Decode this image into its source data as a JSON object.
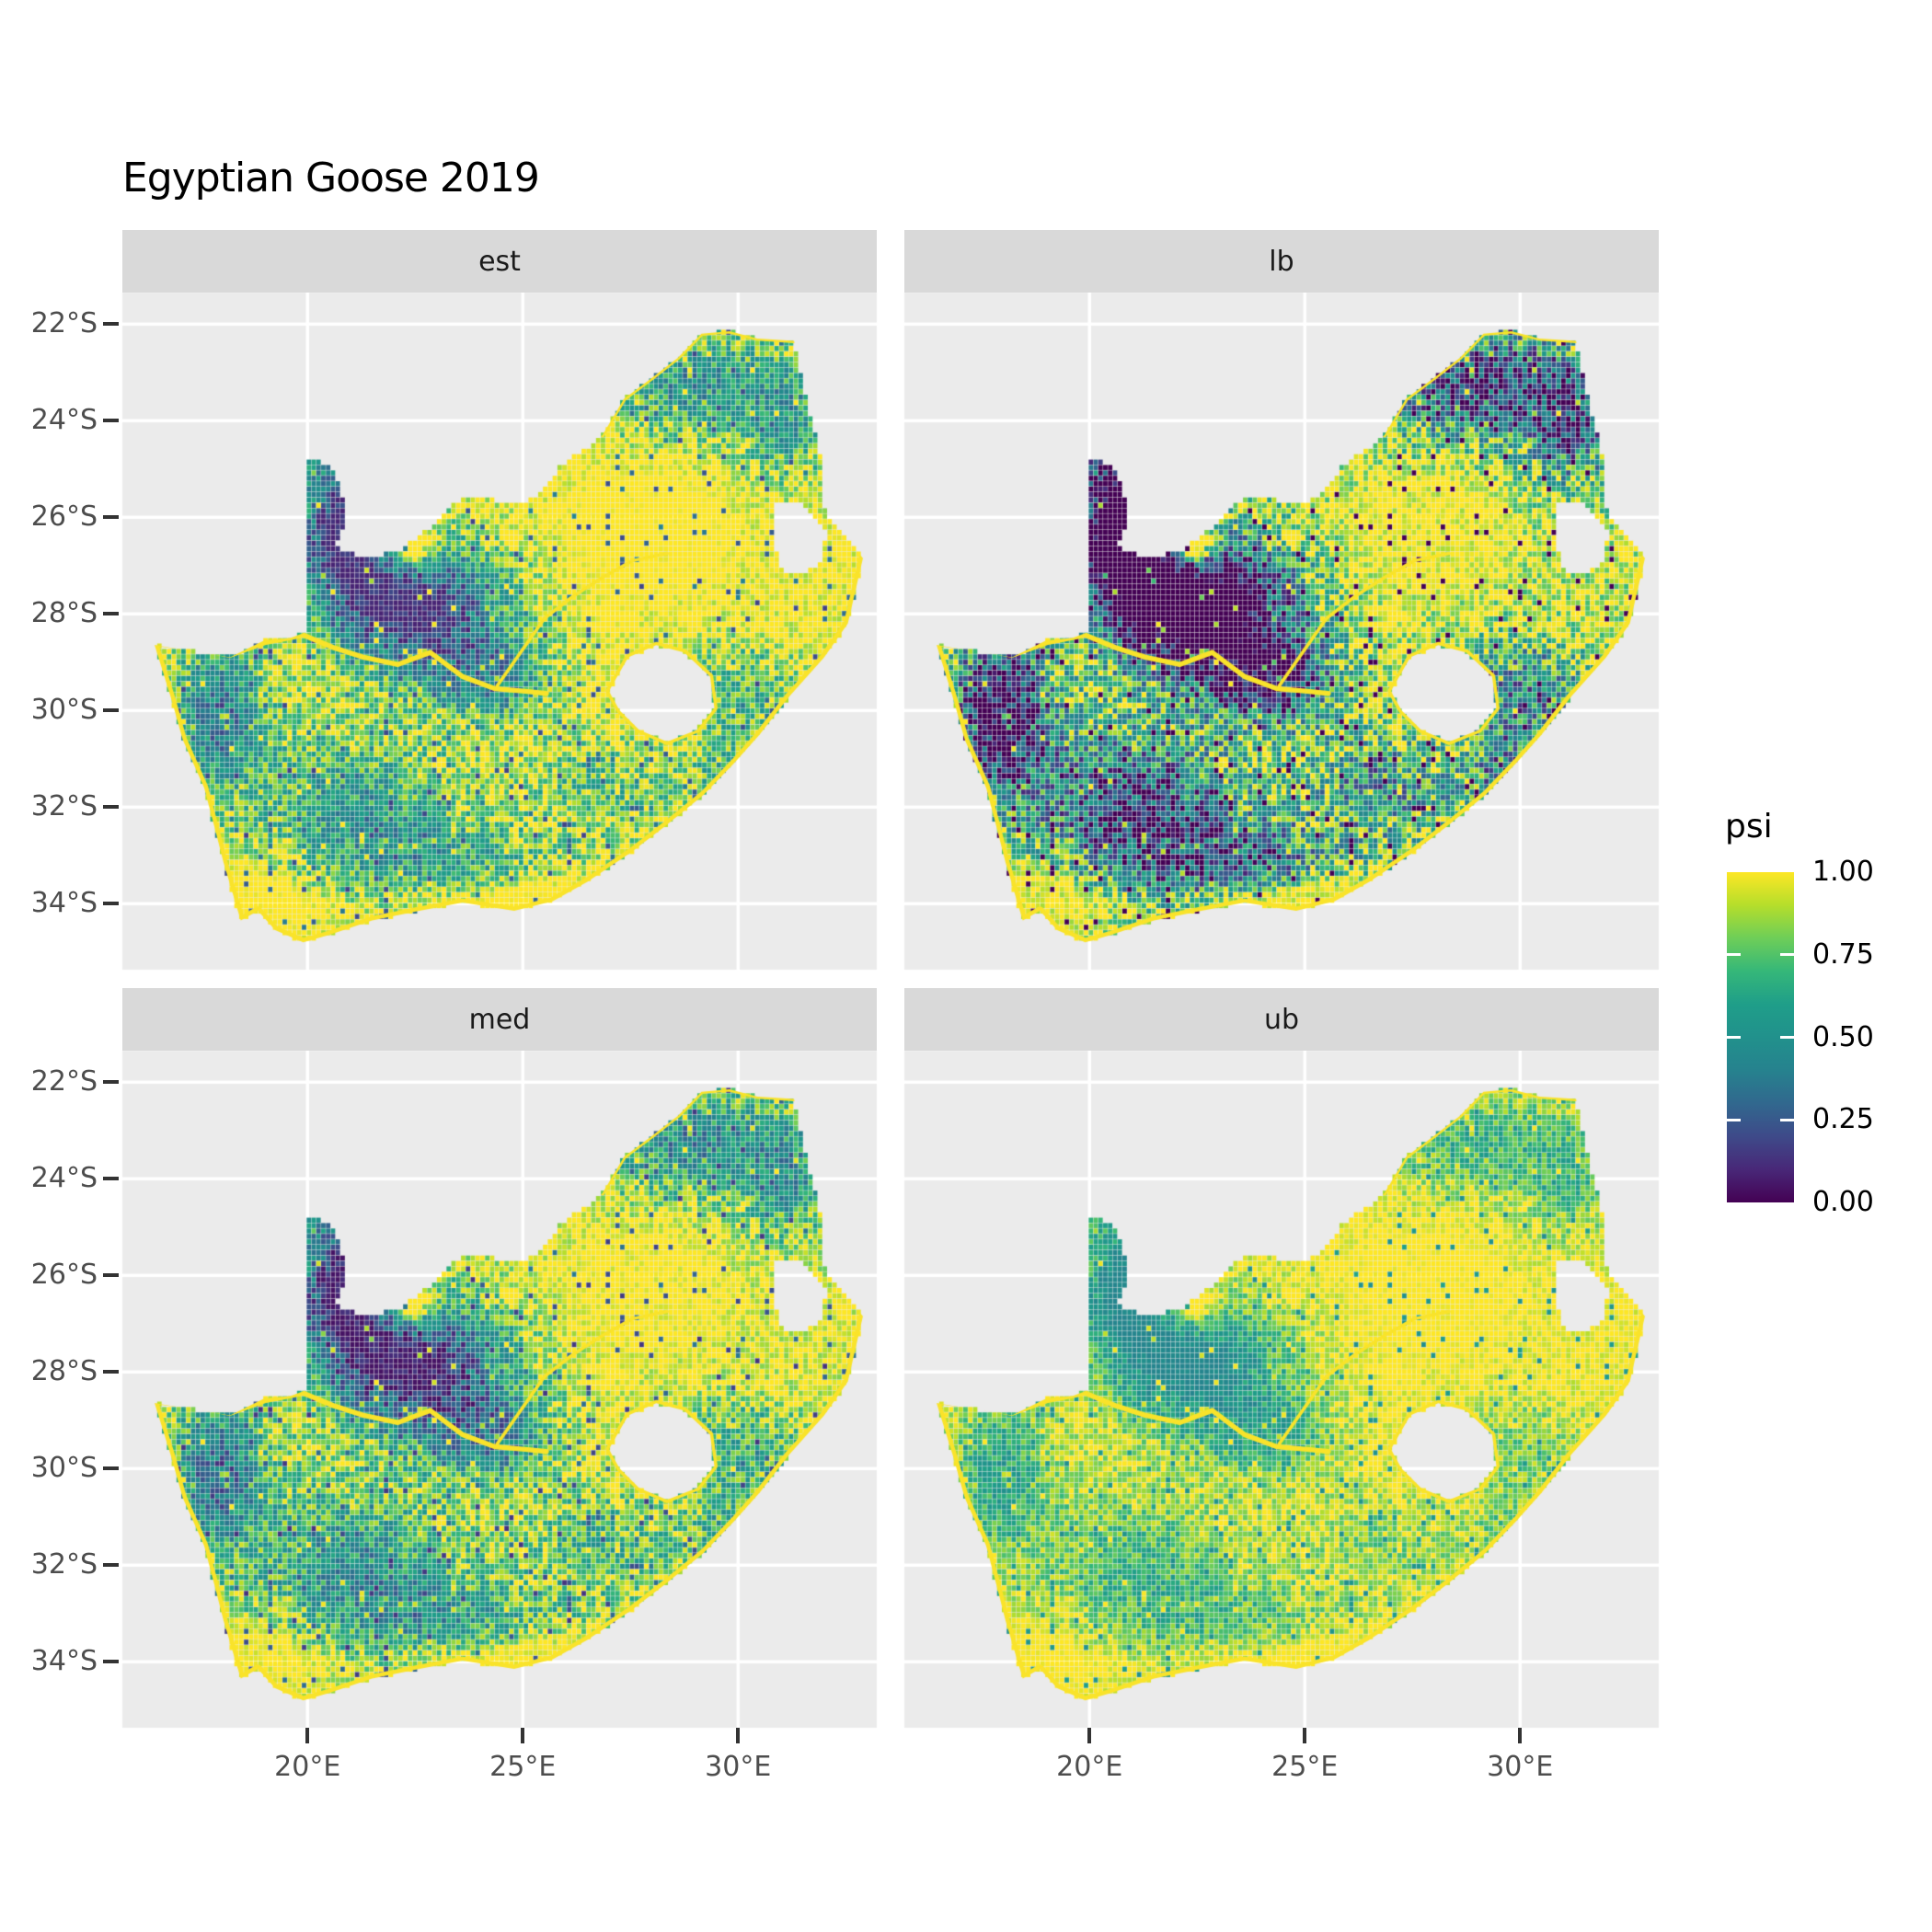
{
  "title": "Egyptian Goose 2019",
  "facets": [
    {
      "label": "est"
    },
    {
      "label": "lb"
    },
    {
      "label": "med"
    },
    {
      "label": "ub"
    }
  ],
  "y_axis": {
    "ticks": [
      {
        "label": "22°S",
        "lat": -22
      },
      {
        "label": "24°S",
        "lat": -24
      },
      {
        "label": "26°S",
        "lat": -26
      },
      {
        "label": "28°S",
        "lat": -28
      },
      {
        "label": "30°S",
        "lat": -30
      },
      {
        "label": "32°S",
        "lat": -32
      },
      {
        "label": "34°S",
        "lat": -34
      }
    ]
  },
  "x_axis": {
    "ticks": [
      {
        "label": "20°E",
        "lon": 20
      },
      {
        "label": "25°E",
        "lon": 25
      },
      {
        "label": "30°E",
        "lon": 30
      }
    ]
  },
  "legend": {
    "title": "psi",
    "ticks": [
      {
        "label": "1.00",
        "value": 1.0
      },
      {
        "label": "0.75",
        "value": 0.75
      },
      {
        "label": "0.50",
        "value": 0.5
      },
      {
        "label": "0.25",
        "value": 0.25
      },
      {
        "label": "0.00",
        "value": 0.0
      }
    ]
  },
  "colors": {
    "background": "#FFFFFF",
    "panel_background": "#EBEBEB",
    "strip_background": "#D9D9D9",
    "gridline": "#FFFFFF",
    "axis_text": "#4D4D4D",
    "tick_mark": "#333333",
    "title_text": "#000000",
    "strip_text": "#1A1A1A",
    "river_highlight": "#F9E32A"
  },
  "chart_data": {
    "type": "heatmap",
    "title": "Egyptian Goose 2019",
    "variable": "psi",
    "value_range": [
      0,
      1
    ],
    "region": "South Africa",
    "lon_range": [
      15.7,
      33.2
    ],
    "lat_range": [
      -35.4,
      -21.35
    ],
    "grid_resolution_deg": 0.112,
    "legend_position": "right",
    "grid": true,
    "palette": "viridis",
    "viridis_stops": [
      [
        0.0,
        "#440154"
      ],
      [
        0.1,
        "#482878"
      ],
      [
        0.2,
        "#3E4A89"
      ],
      [
        0.3,
        "#31688E"
      ],
      [
        0.4,
        "#26828E"
      ],
      [
        0.5,
        "#21918C"
      ],
      [
        0.6,
        "#1F9E89"
      ],
      [
        0.7,
        "#35B779"
      ],
      [
        0.8,
        "#6ECE58"
      ],
      [
        0.9,
        "#B5DE2B"
      ],
      [
        1.0,
        "#FDE725"
      ]
    ],
    "facets": [
      {
        "name": "est",
        "transform": {
          "mul": 1.0,
          "add": 0.09
        }
      },
      {
        "name": "lb",
        "transform": {
          "mul": 1.6,
          "add": -0.55
        }
      },
      {
        "name": "med",
        "transform": {
          "mul": 1.0,
          "add": 0.045
        }
      },
      {
        "name": "ub",
        "transform": {
          "mul": 0.62,
          "add": 0.42
        }
      }
    ],
    "south_africa_outline": [
      [
        16.45,
        -28.65
      ],
      [
        17.35,
        -28.78
      ],
      [
        18.2,
        -28.9
      ],
      [
        19.0,
        -28.55
      ],
      [
        19.6,
        -28.5
      ],
      [
        20.0,
        -28.37
      ],
      [
        20.0,
        -24.77
      ],
      [
        20.55,
        -24.95
      ],
      [
        20.9,
        -25.75
      ],
      [
        20.85,
        -26.2
      ],
      [
        20.65,
        -26.6
      ],
      [
        21.4,
        -26.85
      ],
      [
        22.2,
        -26.65
      ],
      [
        22.9,
        -26.2
      ],
      [
        23.5,
        -25.65
      ],
      [
        24.2,
        -25.6
      ],
      [
        24.75,
        -25.75
      ],
      [
        25.35,
        -25.6
      ],
      [
        25.9,
        -24.9
      ],
      [
        26.45,
        -24.6
      ],
      [
        26.85,
        -24.3
      ],
      [
        27.35,
        -23.55
      ],
      [
        27.95,
        -23.15
      ],
      [
        28.6,
        -22.7
      ],
      [
        29.15,
        -22.2
      ],
      [
        29.8,
        -22.15
      ],
      [
        30.45,
        -22.3
      ],
      [
        31.3,
        -22.35
      ],
      [
        31.6,
        -23.6
      ],
      [
        31.9,
        -24.6
      ],
      [
        31.95,
        -25.5
      ],
      [
        32.05,
        -25.9
      ],
      [
        32.9,
        -26.85
      ],
      [
        32.55,
        -28.2
      ],
      [
        32.0,
        -28.9
      ],
      [
        31.2,
        -29.7
      ],
      [
        30.5,
        -30.5
      ],
      [
        29.9,
        -31.1
      ],
      [
        29.2,
        -31.75
      ],
      [
        28.3,
        -32.4
      ],
      [
        27.5,
        -32.95
      ],
      [
        26.5,
        -33.55
      ],
      [
        25.7,
        -33.95
      ],
      [
        24.8,
        -34.15
      ],
      [
        23.6,
        -33.98
      ],
      [
        22.6,
        -34.15
      ],
      [
        21.5,
        -34.35
      ],
      [
        20.5,
        -34.65
      ],
      [
        19.9,
        -34.8
      ],
      [
        19.25,
        -34.55
      ],
      [
        18.85,
        -34.15
      ],
      [
        18.45,
        -34.35
      ],
      [
        18.3,
        -33.9
      ],
      [
        18.05,
        -33.15
      ],
      [
        17.85,
        -32.45
      ],
      [
        17.6,
        -31.6
      ],
      [
        17.1,
        -30.6
      ],
      [
        16.85,
        -29.8
      ]
    ],
    "lesotho_hole": [
      [
        27.0,
        -29.6
      ],
      [
        27.45,
        -28.9
      ],
      [
        28.1,
        -28.65
      ],
      [
        28.75,
        -28.8
      ],
      [
        29.35,
        -29.3
      ],
      [
        29.45,
        -29.95
      ],
      [
        29.05,
        -30.4
      ],
      [
        28.35,
        -30.65
      ],
      [
        27.7,
        -30.4
      ],
      [
        27.25,
        -30.0
      ]
    ],
    "eswatini_hole": [
      [
        30.85,
        -25.75
      ],
      [
        31.45,
        -25.72
      ],
      [
        32.05,
        -26.25
      ],
      [
        31.95,
        -26.85
      ],
      [
        31.55,
        -27.2
      ],
      [
        31.05,
        -27.1
      ],
      [
        30.8,
        -26.45
      ]
    ],
    "rivers": {
      "orange": [
        [
          16.5,
          -28.62
        ],
        [
          17.4,
          -28.72
        ],
        [
          18.2,
          -28.86
        ],
        [
          19.0,
          -28.6
        ],
        [
          19.9,
          -28.44
        ],
        [
          20.6,
          -28.7
        ],
        [
          21.3,
          -28.9
        ],
        [
          22.1,
          -29.05
        ],
        [
          22.85,
          -28.8
        ],
        [
          23.6,
          -29.3
        ],
        [
          24.35,
          -29.55
        ],
        [
          25.0,
          -29.6
        ],
        [
          25.55,
          -29.65
        ]
      ],
      "vaal": [
        [
          28.35,
          -26.75
        ],
        [
          27.55,
          -26.9
        ],
        [
          26.85,
          -27.25
        ],
        [
          26.15,
          -27.65
        ],
        [
          25.5,
          -28.1
        ],
        [
          24.95,
          -28.8
        ],
        [
          24.4,
          -29.5
        ]
      ],
      "limpopo_border": [
        [
          26.85,
          -24.3
        ],
        [
          27.35,
          -23.55
        ],
        [
          27.95,
          -23.15
        ],
        [
          28.6,
          -22.7
        ],
        [
          29.15,
          -22.2
        ],
        [
          29.8,
          -22.15
        ],
        [
          30.45,
          -22.3
        ],
        [
          31.3,
          -22.35
        ]
      ]
    },
    "low_psi_blobs": [
      [
        20.75,
        -26.2,
        1.15,
        1.7,
        0.85
      ],
      [
        22.6,
        -27.9,
        1.95,
        1.4,
        0.92
      ],
      [
        24.3,
        -29.4,
        1.4,
        0.95,
        0.5
      ],
      [
        17.9,
        -30.1,
        1.15,
        1.55,
        0.62
      ],
      [
        21.0,
        -31.9,
        2.3,
        1.45,
        0.45
      ],
      [
        28.9,
        -23.2,
        2.4,
        1.05,
        0.5
      ],
      [
        31.2,
        -24.1,
        1.05,
        1.15,
        0.38
      ],
      [
        30.1,
        -29.6,
        1.35,
        1.0,
        0.33
      ],
      [
        23.3,
        -33.1,
        2.7,
        0.85,
        0.35
      ],
      [
        26.8,
        -31.6,
        1.7,
        1.05,
        0.28
      ],
      [
        29.6,
        -31.2,
        0.85,
        0.75,
        0.33
      ]
    ],
    "high_psi_blobs": [
      [
        22.4,
        -26.6,
        0.5,
        0.45,
        0.65
      ],
      [
        27.9,
        -26.3,
        1.2,
        0.9,
        0.3
      ],
      [
        18.8,
        -33.9,
        1.3,
        0.6,
        0.25
      ],
      [
        25.5,
        -34.0,
        2.2,
        0.55,
        0.22
      ]
    ],
    "noise": {
      "spread": 0.5,
      "outlier_rate": 0.04,
      "base_level": 0.92
    }
  }
}
